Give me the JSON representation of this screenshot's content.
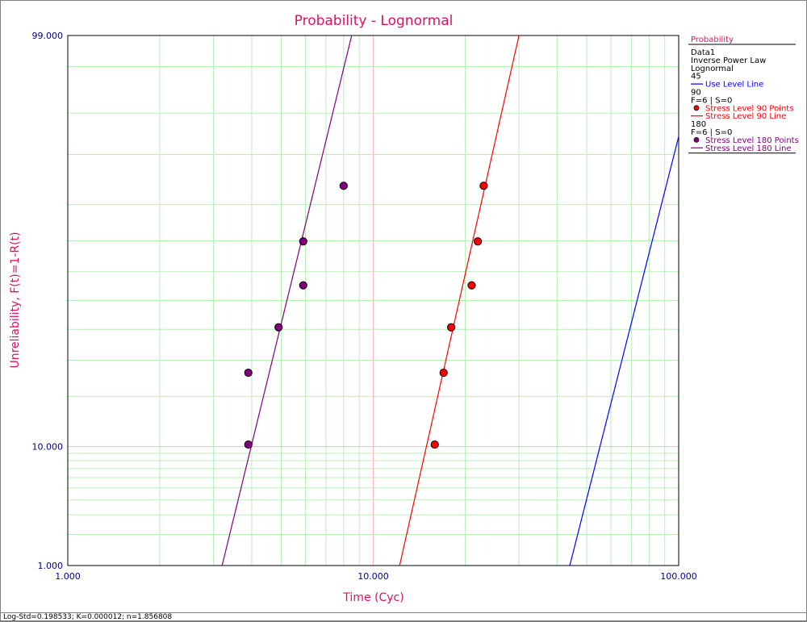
{
  "chart_data": {
    "type": "scatter",
    "title": "Probability - Lognormal",
    "xlabel": "Time (Cyc)",
    "ylabel": "Unreliability, F(t)=1-R(t)",
    "x_scale": "log",
    "y_scale": "lognormal-probability",
    "xlim": [
      1,
      100
    ],
    "ylim": [
      1,
      99
    ],
    "x_ticks": [
      "1.000",
      "10.000",
      "100.000"
    ],
    "y_ticks": [
      "1.000",
      "10.000",
      "99.000"
    ],
    "grid": true,
    "series": [
      {
        "name": "Stress Level 180 Points",
        "kind": "points",
        "color": "#800080",
        "points": [
          {
            "x": 3.9,
            "y": 10.3
          },
          {
            "x": 3.9,
            "y": 26.3
          },
          {
            "x": 4.9,
            "y": 40.7
          },
          {
            "x": 5.9,
            "y": 55.3
          },
          {
            "x": 5.9,
            "y": 69.8
          },
          {
            "x": 8.0,
            "y": 84.3
          }
        ]
      },
      {
        "name": "Stress Level 90 Points",
        "kind": "points",
        "color": "#ff0000",
        "points": [
          {
            "x": 15.9,
            "y": 10.3
          },
          {
            "x": 17.0,
            "y": 26.3
          },
          {
            "x": 18.0,
            "y": 40.7
          },
          {
            "x": 21.0,
            "y": 55.3
          },
          {
            "x": 22.0,
            "y": 69.8
          },
          {
            "x": 23.0,
            "y": 84.3
          }
        ]
      },
      {
        "name": "Stress Level 180 Line",
        "kind": "line",
        "color": "#800080",
        "points": [
          {
            "x": 3.2,
            "y": 1.0
          },
          {
            "x": 8.5,
            "y": 99.0
          }
        ]
      },
      {
        "name": "Stress Level 90 Line",
        "kind": "line",
        "color": "#ff0000",
        "points": [
          {
            "x": 12.2,
            "y": 1.0
          },
          {
            "x": 30.0,
            "y": 99.0
          }
        ]
      },
      {
        "name": "Use Level Line",
        "kind": "line",
        "color": "#0000ff",
        "points": [
          {
            "x": 44.0,
            "y": 1.0
          },
          {
            "x": 100.0,
            "y": 92.5
          }
        ]
      }
    ]
  },
  "legend": {
    "header": "Probability",
    "lines": [
      {
        "text": "Data1",
        "kind": "text"
      },
      {
        "text": "Inverse Power Law",
        "kind": "text"
      },
      {
        "text": "Lognormal",
        "kind": "text"
      },
      {
        "text": "45",
        "kind": "text"
      },
      {
        "text": "Use Level Line",
        "kind": "line",
        "color": "#0000ff"
      },
      {
        "text": "90",
        "kind": "text"
      },
      {
        "text": "F=6 | S=0",
        "kind": "text"
      },
      {
        "text": "Stress Level 90 Points",
        "kind": "dot",
        "color": "#ff0000"
      },
      {
        "text": "Stress Level 90 Line",
        "kind": "line",
        "color": "#ff0000"
      },
      {
        "text": "180",
        "kind": "text"
      },
      {
        "text": "F=6 | S=0",
        "kind": "text"
      },
      {
        "text": "Stress Level 180 Points",
        "kind": "dot",
        "color": "#800080"
      },
      {
        "text": "Stress Level 180 Line",
        "kind": "line",
        "color": "#800080"
      }
    ]
  },
  "status_bar": {
    "text": "Log-Std=0.198533; K=0.000012; n=1.856808"
  },
  "colors": {
    "title": "#e0115f",
    "axis_text": "#00008b",
    "major_grid": "#ffb6c1",
    "minor_grid": "#b6f0b6"
  }
}
